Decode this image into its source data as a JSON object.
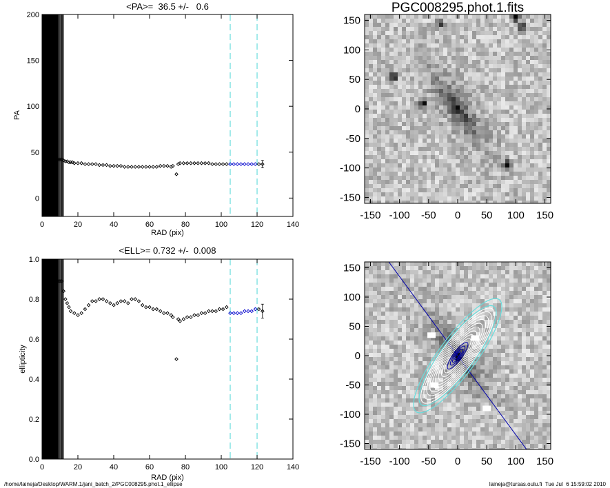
{
  "footer": {
    "path": "/home/laineja/Desktop/WARM.1/jani_batch_2/PGC008295.phot.1_ellipse",
    "stamp": "laineja@tursas.oulu.fi  Tue Jul  6 15:59:02 2010"
  },
  "chart_data": [
    {
      "type": "scatter",
      "title": "<PA>=  36.5 +/-   0.6",
      "xlabel": "RAD (pix)",
      "ylabel": "PA",
      "xlim": [
        0,
        140
      ],
      "ylim": [
        -20,
        200
      ],
      "xticks": [
        0,
        20,
        40,
        60,
        80,
        100,
        120,
        140
      ],
      "yticks": [
        0,
        50,
        100,
        150,
        200
      ],
      "xtick_labels": [
        "0",
        "20",
        "40",
        "60",
        "80",
        "100",
        "120",
        "140"
      ],
      "ytick_labels": [
        "0",
        "50",
        "100",
        "150",
        "200"
      ],
      "vlines": [
        105,
        120
      ],
      "vline_color": "#66dddd",
      "masked_region": [
        0,
        12
      ],
      "mask_color": "#000000",
      "point_color": "#000000",
      "fit_point_color": "#0000cc",
      "fit_range": [
        105,
        120
      ],
      "points": [
        [
          1,
          42
        ],
        [
          2,
          42
        ],
        [
          3,
          42
        ],
        [
          4,
          42
        ],
        [
          5,
          42
        ],
        [
          6,
          42
        ],
        [
          7,
          42
        ],
        [
          8,
          42
        ],
        [
          9,
          42
        ],
        [
          10,
          42
        ],
        [
          11,
          42
        ],
        [
          12,
          41
        ],
        [
          13,
          40
        ],
        [
          14,
          40
        ],
        [
          15,
          39
        ],
        [
          16,
          39
        ],
        [
          17,
          39
        ],
        [
          18,
          38
        ],
        [
          20,
          38
        ],
        [
          22,
          38
        ],
        [
          24,
          37
        ],
        [
          26,
          37
        ],
        [
          28,
          37
        ],
        [
          30,
          37
        ],
        [
          32,
          36
        ],
        [
          34,
          36
        ],
        [
          36,
          36
        ],
        [
          38,
          35
        ],
        [
          40,
          35
        ],
        [
          42,
          35
        ],
        [
          44,
          35
        ],
        [
          46,
          34
        ],
        [
          48,
          34
        ],
        [
          50,
          34
        ],
        [
          52,
          34
        ],
        [
          54,
          34
        ],
        [
          56,
          34
        ],
        [
          58,
          34
        ],
        [
          60,
          34
        ],
        [
          62,
          34
        ],
        [
          64,
          34
        ],
        [
          66,
          35
        ],
        [
          68,
          35
        ],
        [
          70,
          35
        ],
        [
          72,
          34
        ],
        [
          73,
          35
        ],
        [
          75,
          26
        ],
        [
          76,
          37
        ],
        [
          77,
          38
        ],
        [
          79,
          38
        ],
        [
          81,
          38
        ],
        [
          83,
          38
        ],
        [
          85,
          38
        ],
        [
          87,
          38
        ],
        [
          89,
          38
        ],
        [
          91,
          38
        ],
        [
          93,
          38
        ],
        [
          95,
          37
        ],
        [
          97,
          37
        ],
        [
          99,
          37
        ],
        [
          101,
          37
        ],
        [
          103,
          37
        ],
        [
          105,
          37
        ],
        [
          107,
          37
        ],
        [
          109,
          37
        ],
        [
          111,
          37
        ],
        [
          113,
          37
        ],
        [
          115,
          37
        ],
        [
          117,
          37
        ],
        [
          119,
          37
        ],
        [
          121,
          37
        ],
        [
          123,
          37
        ]
      ],
      "errorbar": {
        "x": 123,
        "y": 37,
        "err": 4
      }
    },
    {
      "type": "scatter",
      "title": "<ELL>= 0.732 +/-  0.008",
      "xlabel": "RAD (pix)",
      "ylabel": "ellipticity",
      "xlim": [
        0,
        140
      ],
      "ylim": [
        0.0,
        1.0
      ],
      "xticks": [
        0,
        20,
        40,
        60,
        80,
        100,
        120,
        140
      ],
      "yticks": [
        0.0,
        0.2,
        0.4,
        0.6,
        0.8,
        1.0
      ],
      "xtick_labels": [
        "0",
        "20",
        "40",
        "60",
        "80",
        "100",
        "120",
        "140"
      ],
      "ytick_labels": [
        "0.0",
        "0.2",
        "0.4",
        "0.6",
        "0.8",
        "1.0"
      ],
      "vlines": [
        105,
        120
      ],
      "vline_color": "#66dddd",
      "masked_region": [
        0,
        12
      ],
      "mask_color": "#000000",
      "point_color": "#000000",
      "fit_point_color": "#0000cc",
      "fit_range": [
        105,
        120
      ],
      "points": [
        [
          1,
          0.89
        ],
        [
          2,
          0.89
        ],
        [
          3,
          0.89
        ],
        [
          4,
          0.89
        ],
        [
          5,
          0.89
        ],
        [
          6,
          0.89
        ],
        [
          7,
          0.89
        ],
        [
          8,
          0.89
        ],
        [
          9,
          0.89
        ],
        [
          10,
          0.89
        ],
        [
          11,
          0.89
        ],
        [
          12,
          0.84
        ],
        [
          13,
          0.8
        ],
        [
          14,
          0.78
        ],
        [
          15,
          0.76
        ],
        [
          16,
          0.74
        ],
        [
          18,
          0.73
        ],
        [
          20,
          0.72
        ],
        [
          22,
          0.73
        ],
        [
          24,
          0.75
        ],
        [
          26,
          0.77
        ],
        [
          28,
          0.79
        ],
        [
          30,
          0.79
        ],
        [
          32,
          0.8
        ],
        [
          34,
          0.8
        ],
        [
          36,
          0.79
        ],
        [
          38,
          0.78
        ],
        [
          40,
          0.77
        ],
        [
          42,
          0.78
        ],
        [
          44,
          0.79
        ],
        [
          46,
          0.79
        ],
        [
          48,
          0.78
        ],
        [
          50,
          0.8
        ],
        [
          52,
          0.8
        ],
        [
          54,
          0.79
        ],
        [
          56,
          0.77
        ],
        [
          58,
          0.76
        ],
        [
          60,
          0.76
        ],
        [
          62,
          0.75
        ],
        [
          64,
          0.75
        ],
        [
          66,
          0.74
        ],
        [
          68,
          0.73
        ],
        [
          70,
          0.73
        ],
        [
          72,
          0.72
        ],
        [
          73,
          0.71
        ],
        [
          75,
          0.5
        ],
        [
          76,
          0.7
        ],
        [
          77,
          0.69
        ],
        [
          79,
          0.7
        ],
        [
          81,
          0.71
        ],
        [
          83,
          0.71
        ],
        [
          85,
          0.72
        ],
        [
          87,
          0.72
        ],
        [
          89,
          0.73
        ],
        [
          91,
          0.73
        ],
        [
          93,
          0.74
        ],
        [
          95,
          0.74
        ],
        [
          97,
          0.74
        ],
        [
          99,
          0.75
        ],
        [
          101,
          0.75
        ],
        [
          103,
          0.76
        ],
        [
          105,
          0.73
        ],
        [
          107,
          0.73
        ],
        [
          109,
          0.73
        ],
        [
          111,
          0.73
        ],
        [
          113,
          0.74
        ],
        [
          115,
          0.74
        ],
        [
          117,
          0.74
        ],
        [
          119,
          0.75
        ],
        [
          121,
          0.75
        ],
        [
          123,
          0.74
        ]
      ],
      "errorbar": {
        "x": 123,
        "y": 0.74,
        "err": 0.035
      }
    },
    {
      "type": "heatmap",
      "title": "PGC008295.phot.1.fits",
      "xlim": [
        -160,
        160
      ],
      "ylim": [
        -160,
        160
      ],
      "xticks": [
        -150,
        -100,
        -50,
        0,
        50,
        100,
        150
      ],
      "yticks": [
        -150,
        -100,
        -50,
        0,
        50,
        100,
        150
      ],
      "xtick_labels": [
        "-150",
        "-100",
        "-50",
        "0",
        "50",
        "100",
        "150"
      ],
      "ytick_labels": [
        "-150",
        "-100",
        "-50",
        "0",
        "50",
        "100",
        "150"
      ],
      "colormap": "grayscale-inverted",
      "galaxy": {
        "center": [
          0,
          0
        ],
        "pa_deg": 36.5,
        "ellipticity": 0.732,
        "extent": 120
      },
      "stars": [
        [
          85,
          -95
        ],
        [
          -110,
          55
        ],
        [
          -60,
          10
        ],
        [
          100,
          155
        ],
        [
          -30,
          145
        ],
        [
          110,
          140
        ]
      ]
    },
    {
      "type": "heatmap",
      "title": "",
      "xlim": [
        -160,
        160
      ],
      "ylim": [
        -160,
        160
      ],
      "xticks": [
        -150,
        -100,
        -50,
        0,
        50,
        100,
        150
      ],
      "yticks": [
        -150,
        -100,
        -50,
        0,
        50,
        100,
        150
      ],
      "xtick_labels": [
        "-150",
        "-100",
        "-50",
        "0",
        "50",
        "100",
        "150"
      ],
      "ytick_labels": [
        "-150",
        "-100",
        "-50",
        "0",
        "50",
        "100",
        "150"
      ],
      "colormap": "grayscale-inverted",
      "pa_line_color": "#0000aa",
      "outer_isophote_color": "#66dddd",
      "isophote_color": "#ffffff",
      "inner_isophote_color": "#0000aa",
      "isophote_radii": [
        8,
        14,
        20,
        28,
        36,
        44,
        52,
        60,
        68,
        76,
        84,
        92,
        100
      ],
      "outer_isophote_radii": [
        105,
        120
      ],
      "galaxy": {
        "center": [
          0,
          0
        ],
        "pa_deg": 36.5,
        "ellipticity": 0.732
      },
      "masked_patches": [
        [
          -45,
          35
        ],
        [
          -40,
          -50
        ],
        [
          50,
          -90
        ],
        [
          30,
          30
        ]
      ]
    }
  ]
}
